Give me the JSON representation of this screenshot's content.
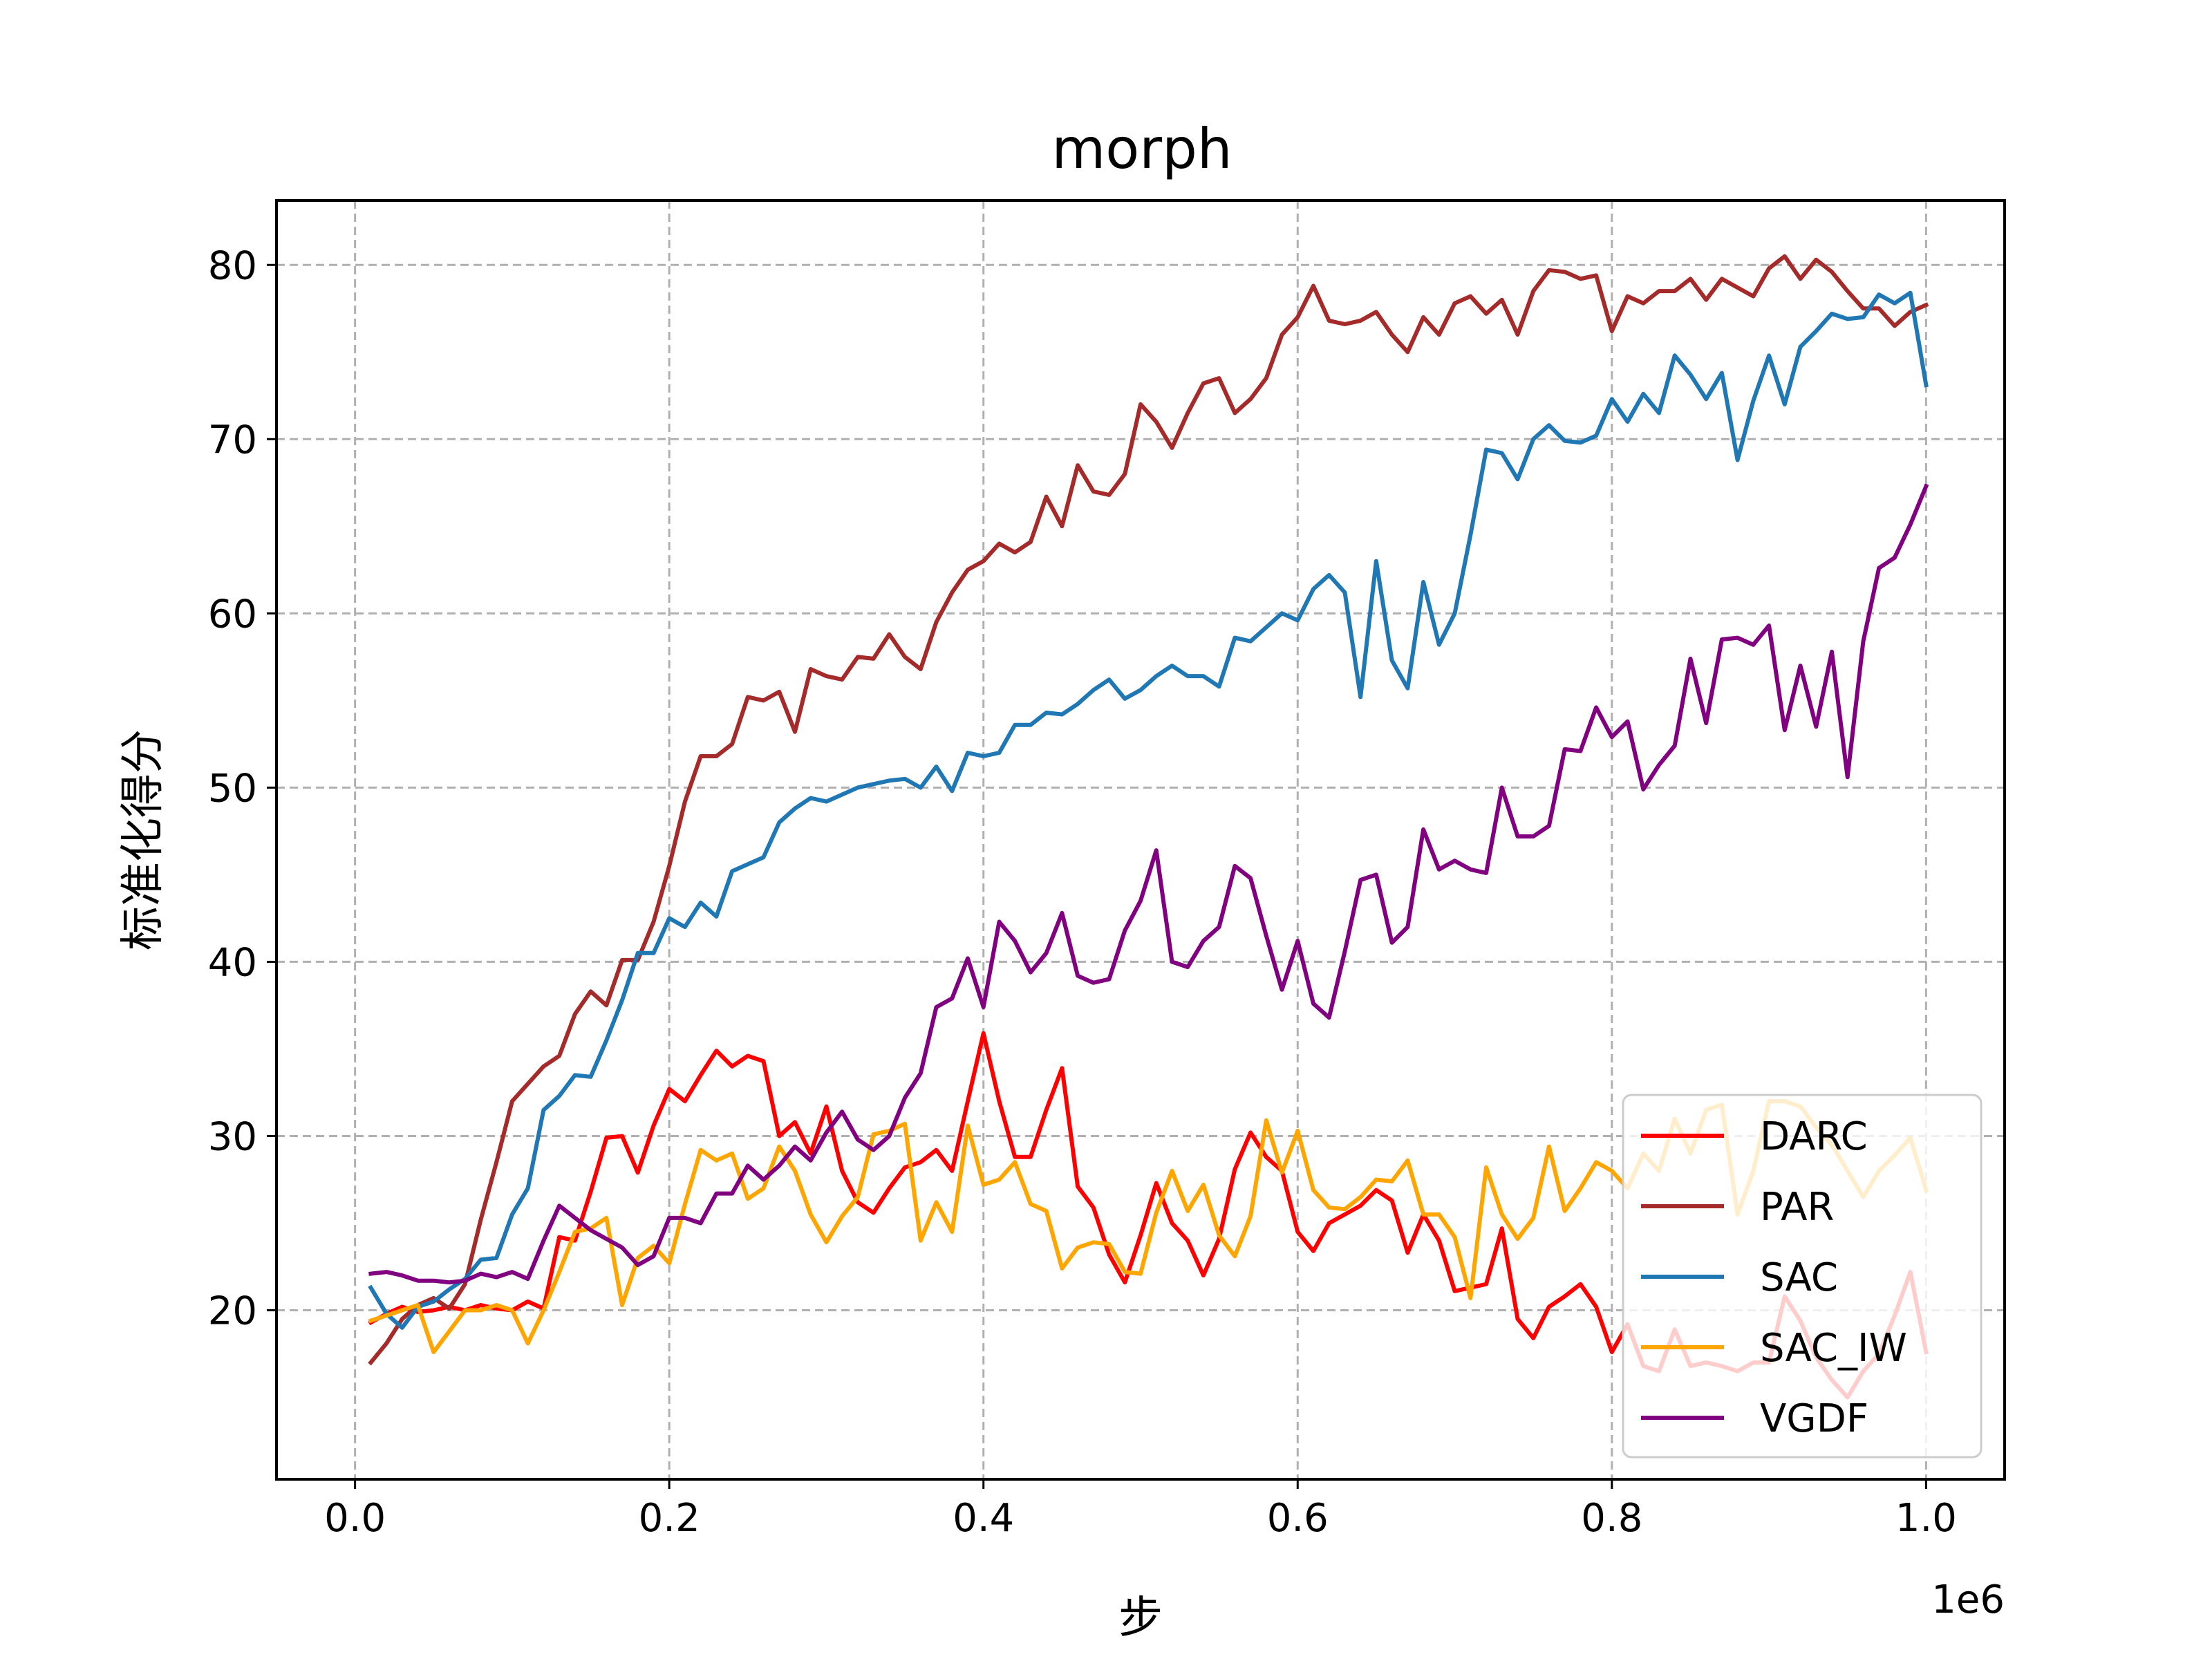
{
  "chart_data": {
    "type": "line",
    "title": "morph",
    "xlabel": "步",
    "ylabel": "标准化得分",
    "x_offset_label": "1e6",
    "xlim": [
      -0.05,
      1.05
    ],
    "ylim": [
      10.3,
      83.7
    ],
    "x_ticks": [
      0.0,
      0.2,
      0.4,
      0.6,
      0.8,
      1.0
    ],
    "x_tick_labels": [
      "0.0",
      "0.2",
      "0.4",
      "0.6",
      "0.8",
      "1.0"
    ],
    "y_ticks": [
      20,
      30,
      40,
      50,
      60,
      70,
      80
    ],
    "y_tick_labels": [
      "20",
      "30",
      "40",
      "50",
      "60",
      "70",
      "80"
    ],
    "grid": true,
    "legend_position": "lower-right",
    "x": [
      0.01,
      0.02,
      0.03,
      0.04,
      0.05,
      0.06,
      0.07,
      0.08,
      0.09,
      0.1,
      0.11,
      0.12,
      0.13,
      0.14,
      0.15,
      0.16,
      0.17,
      0.18,
      0.19,
      0.2,
      0.21,
      0.22,
      0.23,
      0.24,
      0.25,
      0.26,
      0.27,
      0.28,
      0.29,
      0.3,
      0.31,
      0.32,
      0.33,
      0.34,
      0.35,
      0.36,
      0.37,
      0.38,
      0.39,
      0.4,
      0.41,
      0.42,
      0.43,
      0.44,
      0.45,
      0.46,
      0.47,
      0.48,
      0.49,
      0.5,
      0.51,
      0.52,
      0.53,
      0.54,
      0.55,
      0.56,
      0.57,
      0.58,
      0.59,
      0.6,
      0.61,
      0.62,
      0.63,
      0.64,
      0.65,
      0.66,
      0.67,
      0.68,
      0.69,
      0.7,
      0.71,
      0.72,
      0.73,
      0.74,
      0.75,
      0.76,
      0.77,
      0.78,
      0.79,
      0.8,
      0.81,
      0.82,
      0.83,
      0.84,
      0.85,
      0.86,
      0.87,
      0.88,
      0.89,
      0.9,
      0.91,
      0.92,
      0.93,
      0.94,
      0.95,
      0.96,
      0.97,
      0.98,
      0.99,
      1.0
    ],
    "series": [
      {
        "name": "DARC",
        "color": "#ff0000",
        "values": [
          19.3,
          19.8,
          20.2,
          19.9,
          20.0,
          20.2,
          20.0,
          20.3,
          20.1,
          20.0,
          20.5,
          20.1,
          24.2,
          24.0,
          26.8,
          29.9,
          30.0,
          27.9,
          30.6,
          32.7,
          32.0,
          33.5,
          34.9,
          34.0,
          34.6,
          34.3,
          30.0,
          30.8,
          29.0,
          31.7,
          28.0,
          26.2,
          25.6,
          27.0,
          28.2,
          28.5,
          29.2,
          28.0,
          32.0,
          35.9,
          32.0,
          28.8,
          28.8,
          31.5,
          33.9,
          27.1,
          25.9,
          23.2,
          21.6,
          24.3,
          27.3,
          25.0,
          24.0,
          22.0,
          24.1,
          28.1,
          30.2,
          28.8,
          28.0,
          24.5,
          23.4,
          25.0,
          25.5,
          26.0,
          26.9,
          26.3,
          23.3,
          25.5,
          24.0,
          21.1,
          21.3,
          21.5,
          24.7,
          19.5,
          18.4,
          20.2,
          20.8,
          21.5,
          20.2,
          17.6,
          19.2,
          16.8,
          16.5,
          18.9,
          16.8,
          17.0,
          16.8,
          16.5,
          17.0,
          17.0,
          20.8,
          19.4,
          17.3,
          16.0,
          15.0,
          16.5,
          17.5,
          19.7,
          22.2,
          17.6
        ]
      },
      {
        "name": "PAR",
        "color": "#a52a2a",
        "values": [
          17.0,
          18.1,
          19.5,
          20.3,
          20.7,
          20.1,
          21.5,
          25.2,
          28.5,
          32.0,
          33.0,
          34.0,
          34.6,
          37.0,
          38.3,
          37.5,
          40.1,
          40.1,
          42.3,
          45.5,
          49.2,
          51.8,
          51.8,
          52.5,
          55.2,
          55.0,
          55.5,
          53.2,
          56.8,
          56.4,
          56.2,
          57.5,
          57.4,
          58.8,
          57.5,
          56.8,
          59.5,
          61.2,
          62.5,
          63.0,
          64.0,
          63.5,
          64.1,
          66.7,
          65.0,
          68.5,
          67.0,
          66.8,
          68.0,
          72.0,
          71.0,
          69.5,
          71.5,
          73.2,
          73.5,
          71.5,
          72.3,
          73.5,
          76.0,
          77.0,
          78.8,
          76.8,
          76.6,
          76.8,
          77.3,
          76.0,
          75.0,
          77.0,
          76.0,
          77.8,
          78.2,
          77.2,
          78.0,
          76.0,
          78.5,
          79.7,
          79.6,
          79.2,
          79.4,
          76.2,
          78.2,
          77.8,
          78.5,
          78.5,
          79.2,
          78.0,
          79.2,
          78.7,
          78.2,
          79.8,
          80.5,
          79.2,
          80.3,
          79.6,
          78.5,
          77.5,
          77.5,
          76.5,
          77.3,
          77.7
        ]
      },
      {
        "name": "SAC",
        "color": "#1f77b4",
        "values": [
          21.3,
          19.8,
          19.0,
          20.2,
          20.5,
          21.2,
          21.8,
          22.9,
          23.0,
          25.5,
          27.0,
          31.5,
          32.3,
          33.5,
          33.4,
          35.5,
          37.8,
          40.5,
          40.5,
          42.5,
          42.0,
          43.4,
          42.6,
          45.2,
          45.6,
          46.0,
          48.0,
          48.8,
          49.4,
          49.2,
          49.6,
          50.0,
          50.2,
          50.4,
          50.5,
          50.0,
          51.2,
          49.8,
          52.0,
          51.8,
          52.0,
          53.6,
          53.6,
          54.3,
          54.2,
          54.8,
          55.6,
          56.2,
          55.1,
          55.6,
          56.4,
          57.0,
          56.4,
          56.4,
          55.8,
          58.6,
          58.4,
          59.2,
          60.0,
          59.6,
          61.4,
          62.2,
          61.2,
          55.2,
          63.0,
          57.3,
          55.7,
          61.8,
          58.2,
          60.0,
          64.5,
          69.4,
          69.2,
          67.7,
          70.0,
          70.8,
          69.9,
          69.8,
          70.2,
          72.3,
          71.0,
          72.6,
          71.5,
          74.8,
          73.7,
          72.3,
          73.8,
          68.8,
          72.2,
          74.8,
          72.0,
          75.3,
          76.2,
          77.2,
          76.9,
          77.0,
          78.3,
          77.8,
          78.4,
          73.1
        ]
      },
      {
        "name": "SAC_IW",
        "color": "#ffa500",
        "values": [
          19.4,
          19.7,
          20.0,
          20.3,
          17.6,
          18.8,
          20.0,
          20.0,
          20.3,
          20.0,
          18.1,
          20.0,
          22.2,
          24.5,
          24.7,
          25.3,
          20.3,
          23.0,
          23.7,
          22.7,
          26.1,
          29.2,
          28.6,
          29.0,
          26.4,
          27.0,
          29.4,
          28.0,
          25.5,
          23.9,
          25.4,
          26.5,
          30.1,
          30.3,
          30.7,
          24.0,
          26.2,
          24.5,
          30.6,
          27.2,
          27.5,
          28.5,
          26.1,
          25.7,
          22.4,
          23.6,
          23.9,
          23.8,
          22.2,
          22.1,
          25.6,
          28.0,
          25.7,
          27.2,
          24.3,
          23.1,
          25.4,
          30.9,
          27.9,
          30.3,
          26.9,
          25.9,
          25.8,
          26.5,
          27.5,
          27.4,
          28.6,
          25.5,
          25.5,
          24.2,
          20.7,
          28.2,
          25.5,
          24.1,
          25.3,
          29.4,
          25.7,
          27.0,
          28.5,
          28.0,
          27.0,
          29.0,
          28.0,
          31.0,
          29.0,
          31.5,
          31.8,
          25.5,
          28.0,
          32.0,
          32.0,
          31.7,
          30.5,
          29.5,
          28.0,
          26.5,
          28.0,
          28.9,
          29.9,
          26.9
        ]
      },
      {
        "name": "VGDF",
        "color": "#800080",
        "values": [
          22.1,
          22.2,
          22.0,
          21.7,
          21.7,
          21.6,
          21.7,
          22.1,
          21.9,
          22.2,
          21.8,
          24.0,
          26.0,
          25.3,
          24.6,
          24.1,
          23.6,
          22.6,
          23.1,
          25.3,
          25.3,
          25.0,
          26.7,
          26.7,
          28.3,
          27.5,
          28.3,
          29.4,
          28.6,
          30.2,
          31.4,
          29.8,
          29.2,
          30.0,
          32.2,
          33.6,
          37.4,
          37.9,
          40.2,
          37.4,
          42.3,
          41.2,
          39.4,
          40.5,
          42.8,
          39.2,
          38.8,
          39.0,
          41.8,
          43.5,
          46.4,
          40.0,
          39.7,
          41.2,
          42.0,
          45.5,
          44.8,
          41.5,
          38.4,
          41.2,
          37.6,
          36.8,
          40.6,
          44.7,
          45.0,
          41.1,
          42.0,
          47.6,
          45.3,
          45.8,
          45.3,
          45.1,
          50.0,
          47.2,
          47.2,
          47.8,
          52.2,
          52.1,
          54.6,
          52.9,
          53.8,
          49.9,
          51.3,
          52.4,
          57.4,
          53.7,
          58.5,
          58.6,
          58.2,
          59.3,
          53.3,
          57.0,
          53.5,
          57.8,
          50.6,
          58.4,
          62.6,
          63.2,
          65.1,
          67.3
        ]
      }
    ]
  }
}
